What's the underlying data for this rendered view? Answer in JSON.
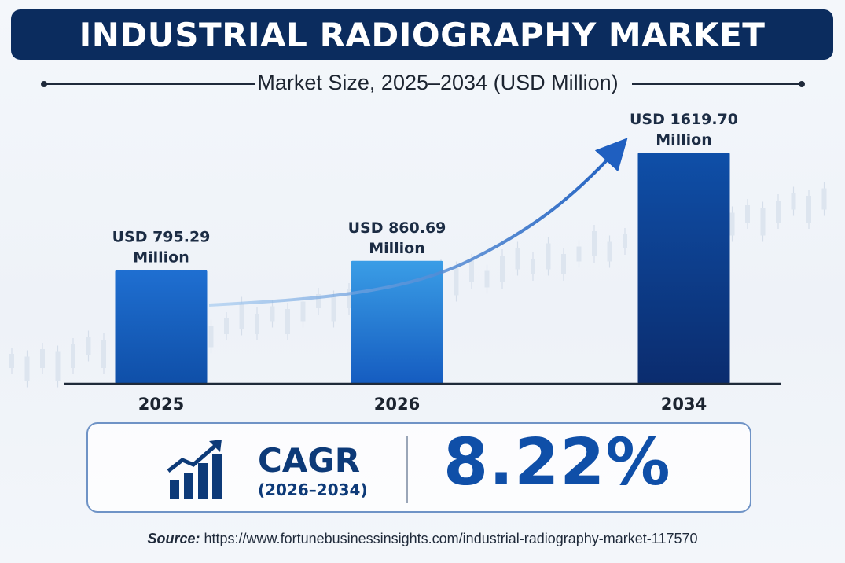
{
  "header": {
    "title": "INDUSTRIAL RADIOGRAPHY MARKET",
    "subtitle": "Market Size, 2025–2034 (USD Million)"
  },
  "chart_data": {
    "type": "bar",
    "title": "INDUSTRIAL RADIOGRAPHY MARKET",
    "subtitle": "Market Size, 2025–2034 (USD Million)",
    "categories": [
      "2025",
      "2026",
      "2034"
    ],
    "values": [
      795.29,
      860.69,
      1619.7
    ],
    "data_labels": [
      [
        "USD 795.29",
        "Million"
      ],
      [
        "USD 860.69",
        "Million"
      ],
      [
        "USD 1619.70",
        "Million"
      ]
    ],
    "xlabel": "",
    "ylabel": "",
    "ylim": [
      0,
      1619.7
    ],
    "grid": false,
    "legend": "none",
    "trend_arrow": true,
    "colors": {
      "bar_top": [
        "#1f6fd1",
        "#3a9de6",
        "#0f4fa8"
      ],
      "bar_bottom": [
        "#0f4fa8",
        "#155cc0",
        "#0b2c6e"
      ],
      "axis": "#1f2a3a",
      "label": "#1c2c44"
    }
  },
  "cagr": {
    "label": "CAGR",
    "period": "(2026–2034)",
    "value": "8.22%",
    "icon": "growth-chart-icon"
  },
  "source": {
    "label": "Source:",
    "url": "https://www.fortunebusinessinsights.com/industrial-radiography-market-117570"
  },
  "colors": {
    "banner": "#0b2c5e",
    "accent": "#0f4fa8",
    "box_border": "#6f93c6"
  }
}
